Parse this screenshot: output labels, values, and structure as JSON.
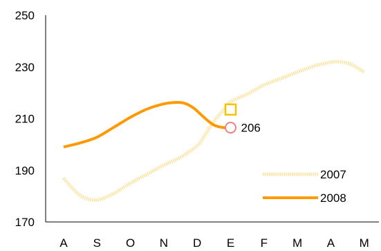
{
  "chart_data": {
    "type": "line",
    "title": "",
    "xlabel": "",
    "ylabel": "",
    "categories": [
      "A",
      "S",
      "O",
      "N",
      "D",
      "E",
      "F",
      "M",
      "A",
      "M"
    ],
    "ylim": [
      170,
      250
    ],
    "yticks": [
      170,
      190,
      210,
      230,
      250
    ],
    "grid": false,
    "legend_position": "bottom-right",
    "series": [
      {
        "name": "2007",
        "color": "#FBE3A0",
        "style": "dotted",
        "x": [
          0,
          0.3,
          0.6,
          1,
          1.5,
          2,
          2.5,
          3,
          3.5,
          4,
          4.2,
          4.5,
          4.8,
          5,
          5.5,
          6,
          6.5,
          7,
          7.5,
          8,
          8.3,
          8.6,
          9
        ],
        "values": [
          187,
          182.5,
          179.5,
          178.5,
          181,
          185,
          188.5,
          192,
          195,
          199.5,
          203,
          209,
          213.5,
          216.5,
          219.5,
          223,
          225.5,
          228,
          230.3,
          231.8,
          231.9,
          231,
          228
        ]
      },
      {
        "name": "2008",
        "color": "#FF9900",
        "style": "solid",
        "x": [
          0,
          0.5,
          1,
          1.5,
          2,
          2.5,
          3,
          3.3,
          3.6,
          3.9,
          4.2,
          4.5,
          4.8,
          5
        ],
        "values": [
          199,
          200.6,
          202.8,
          206.6,
          210.5,
          213.7,
          215.7,
          216.2,
          216,
          214,
          210.5,
          207.5,
          206.5,
          206.5
        ]
      }
    ],
    "annotations": [
      {
        "label": "206",
        "x": 5,
        "y": 206.5,
        "marker": "circle",
        "color": "#F08080"
      },
      {
        "x": 5,
        "y": 213.5,
        "marker": "square",
        "color": "#F5C400"
      }
    ]
  }
}
